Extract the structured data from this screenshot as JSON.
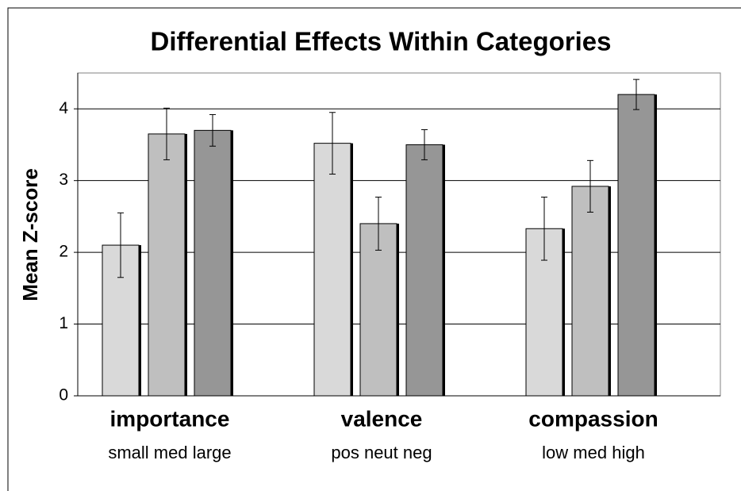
{
  "chart_data": {
    "type": "bar",
    "title": "Differential Effects Within Categories",
    "y_label": "Mean Z-score",
    "categories": [
      "importance",
      "valence",
      "compassion"
    ],
    "sublabels": [
      "small med large",
      "pos neut neg",
      "low med high"
    ],
    "series": [
      {
        "color": "#d9d9d9",
        "values": [
          2.1,
          3.52,
          2.33
        ],
        "errors": [
          0.45,
          0.43,
          0.44
        ]
      },
      {
        "color": "#bfbfbf",
        "values": [
          3.65,
          2.4,
          2.92
        ],
        "errors": [
          0.36,
          0.37,
          0.36
        ]
      },
      {
        "color": "#969696",
        "values": [
          3.7,
          3.5,
          4.2
        ],
        "errors": [
          0.22,
          0.21,
          0.21
        ]
      }
    ],
    "ylim": [
      0,
      4.5
    ],
    "yticks": [
      0,
      1,
      2,
      3,
      4
    ],
    "grid": true
  }
}
